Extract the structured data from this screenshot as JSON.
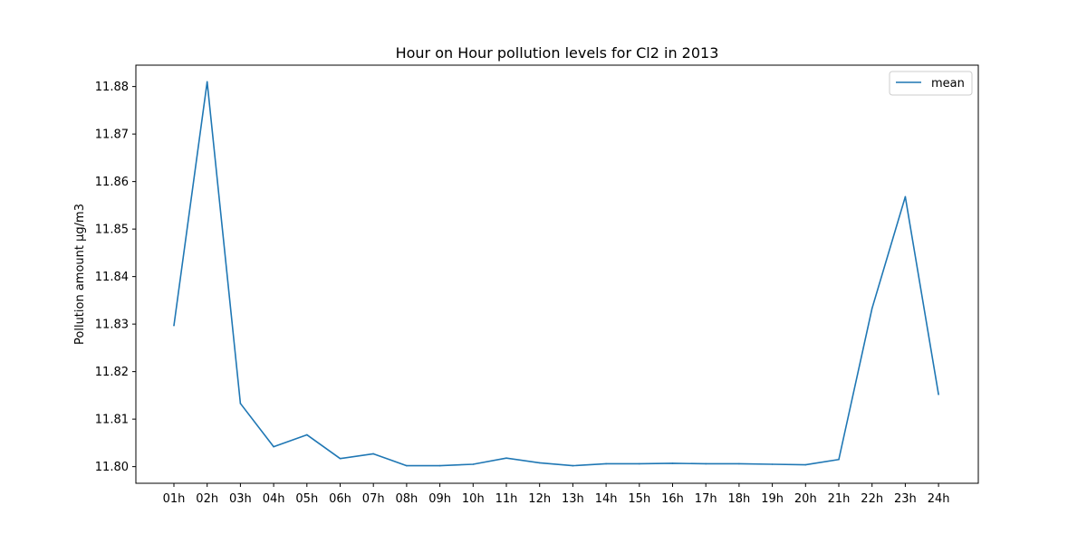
{
  "chart_data": {
    "type": "line",
    "title": "Hour on Hour pollution levels for Cl2 in 2013",
    "xlabel": "",
    "ylabel": "Pollution amount µg/m3",
    "categories": [
      "01h",
      "02h",
      "03h",
      "04h",
      "05h",
      "06h",
      "07h",
      "08h",
      "09h",
      "10h",
      "11h",
      "12h",
      "13h",
      "14h",
      "15h",
      "16h",
      "17h",
      "18h",
      "19h",
      "20h",
      "21h",
      "22h",
      "23h",
      "24h"
    ],
    "series": [
      {
        "name": "mean",
        "color": "#1f77b4",
        "values": [
          11.8297,
          11.881,
          11.8133,
          11.8042,
          11.8067,
          11.8017,
          11.8027,
          11.8002,
          11.8002,
          11.8005,
          11.8018,
          11.8008,
          11.8002,
          11.8006,
          11.8006,
          11.8007,
          11.8006,
          11.8006,
          11.8005,
          11.8004,
          11.8015,
          11.8333,
          11.8568,
          11.8152
        ]
      }
    ],
    "ylim": [
      11.7965,
      11.8845
    ],
    "yticks": [
      11.8,
      11.81,
      11.82,
      11.83,
      11.84,
      11.85,
      11.86,
      11.87,
      11.88
    ],
    "yticks_text": [
      "11.80",
      "11.81",
      "11.82",
      "11.83",
      "11.84",
      "11.85",
      "11.86",
      "11.87",
      "11.88"
    ],
    "legend_position": "top-right",
    "grid": false
  }
}
